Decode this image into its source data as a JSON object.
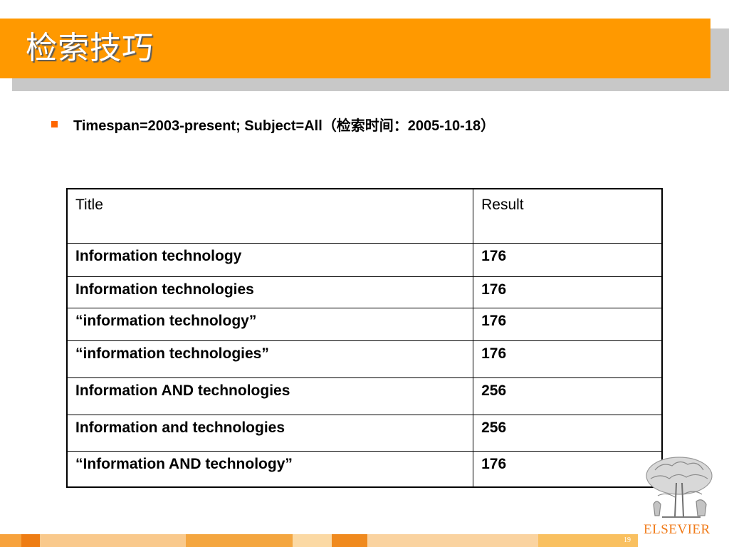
{
  "slide": {
    "title": "检索技巧",
    "bullet": "Timespan=2003-present; Subject=All（检索时间：2005-10-18）",
    "page_number": "19"
  },
  "table": {
    "headers": [
      "Title",
      "Result"
    ],
    "rows": [
      {
        "title": "Information technology",
        "result": "176"
      },
      {
        "title": "Information technologies",
        "result": "176"
      },
      {
        "title": "“information technology”",
        "result": "176"
      },
      {
        "title": "“information technologies”",
        "result": "176"
      },
      {
        "title": "Information AND technologies",
        "result": "256"
      },
      {
        "title": "Information and technologies",
        "result": "256"
      },
      {
        "title": "“Information AND technology”",
        "result": "176"
      }
    ]
  },
  "branding": {
    "publisher": "ELSEVIER",
    "logo_icon": "elsevier-tree-icon"
  },
  "colors": {
    "title_bar": "#ff9900",
    "title_shadow": "#c8c8c8",
    "bullet": "#ff6600",
    "brand": "#f07a18"
  }
}
